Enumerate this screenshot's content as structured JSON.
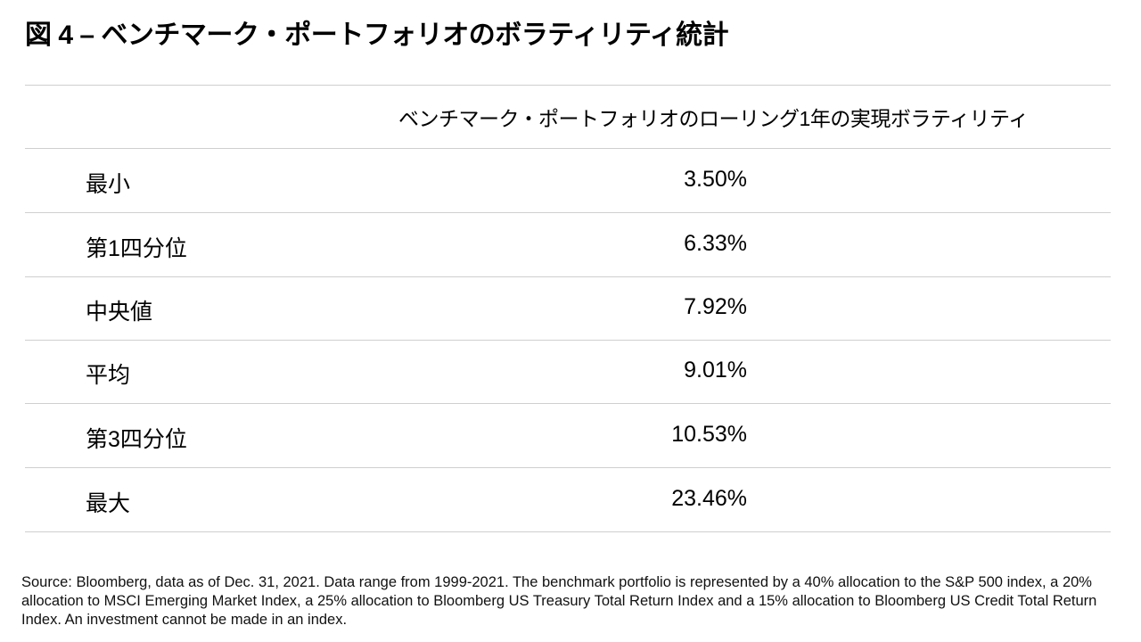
{
  "title": "図 4 – ベンチマーク・ポートフォリオのボラティリティ統計",
  "table": {
    "column_header": "ベンチマーク・ポートフォリオのローリング1年の実現ボラティリティ",
    "rows": [
      {
        "label": "最小",
        "value": "3.50%"
      },
      {
        "label": "第1四分位",
        "value": "6.33%"
      },
      {
        "label": "中央値",
        "value": "7.92%"
      },
      {
        "label": "平均",
        "value": "9.01%"
      },
      {
        "label": "第3四分位",
        "value": "10.53%"
      },
      {
        "label": "最大",
        "value": "23.46%"
      }
    ]
  },
  "source": "Source: Bloomberg, data as of Dec. 31, 2021. Data range from 1999-2021. The benchmark portfolio is represented by a 40% allocation to the S&P 500 index, a 20% allocation to MSCI Emerging Market Index, a 25% allocation to Bloomberg US Treasury Total Return Index and a 15% allocation to Bloomberg US Credit Total Return Index. An investment cannot be made in an index."
}
